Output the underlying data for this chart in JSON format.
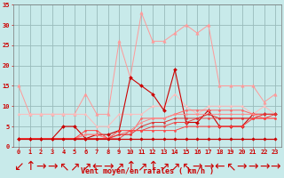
{
  "x": [
    0,
    1,
    2,
    3,
    4,
    5,
    6,
    7,
    8,
    9,
    10,
    11,
    12,
    13,
    14,
    15,
    16,
    17,
    18,
    19,
    20,
    21,
    22,
    23
  ],
  "series": [
    {
      "name": "rafales_top",
      "color": "#ff9999",
      "lw": 0.7,
      "marker": "^",
      "ms": 2.5,
      "y": [
        15,
        8,
        8,
        8,
        8,
        8,
        13,
        8,
        8,
        26,
        17,
        33,
        26,
        26,
        28,
        30,
        28,
        30,
        15,
        15,
        15,
        15,
        11,
        13
      ]
    },
    {
      "name": "rafales_mid",
      "color": "#ffbbbb",
      "lw": 0.7,
      "marker": "^",
      "ms": 2.0,
      "y": [
        8,
        8,
        8,
        8,
        8,
        8,
        8,
        5,
        5,
        8,
        8,
        8,
        10,
        10,
        13,
        10,
        8,
        10,
        10,
        10,
        10,
        8,
        10,
        8
      ]
    },
    {
      "name": "moy_dark",
      "color": "#cc0000",
      "lw": 0.8,
      "marker": "D",
      "ms": 2.0,
      "y": [
        2,
        2,
        2,
        2,
        5,
        5,
        2,
        3,
        3,
        4,
        17,
        15,
        13,
        9,
        19,
        6,
        6,
        9,
        5,
        5,
        5,
        8,
        8,
        8
      ]
    },
    {
      "name": "moy_a",
      "color": "#ff6666",
      "lw": 0.7,
      "marker": "o",
      "ms": 1.5,
      "y": [
        2,
        2,
        2,
        2,
        2,
        2,
        3,
        3,
        2,
        3,
        3,
        7,
        7,
        7,
        8,
        9,
        9,
        9,
        9,
        9,
        9,
        8,
        8,
        8
      ]
    },
    {
      "name": "moy_b",
      "color": "#ff8888",
      "lw": 0.7,
      "marker": "o",
      "ms": 1.5,
      "y": [
        2,
        2,
        2,
        2,
        2,
        2,
        3,
        3,
        2,
        3,
        4,
        6,
        7,
        7,
        8,
        8,
        8,
        8,
        8,
        8,
        8,
        8,
        7,
        7
      ]
    },
    {
      "name": "moy_c",
      "color": "#ee4444",
      "lw": 0.7,
      "marker": "o",
      "ms": 1.5,
      "y": [
        2,
        2,
        2,
        2,
        2,
        2,
        2,
        2,
        2,
        2,
        4,
        4,
        5,
        5,
        6,
        6,
        7,
        7,
        7,
        7,
        7,
        7,
        7,
        8
      ]
    },
    {
      "name": "moy_d",
      "color": "#dd3333",
      "lw": 0.7,
      "marker": "o",
      "ms": 1.5,
      "y": [
        2,
        2,
        2,
        2,
        2,
        2,
        2,
        2,
        2,
        3,
        3,
        5,
        6,
        6,
        7,
        7,
        7,
        8,
        7,
        7,
        7,
        7,
        8,
        8
      ]
    },
    {
      "name": "moy_e",
      "color": "#ff4444",
      "lw": 0.7,
      "marker": "o",
      "ms": 1.5,
      "y": [
        2,
        2,
        2,
        2,
        2,
        2,
        4,
        4,
        2,
        4,
        4,
        4,
        4,
        4,
        4,
        5,
        5,
        5,
        5,
        5,
        5,
        7,
        7,
        7
      ]
    },
    {
      "name": "flat_bottom",
      "color": "#cc0000",
      "lw": 0.9,
      "marker": "D",
      "ms": 1.8,
      "y": [
        2,
        2,
        2,
        2,
        2,
        2,
        2,
        2,
        2,
        2,
        2,
        2,
        2,
        2,
        2,
        2,
        2,
        2,
        2,
        2,
        2,
        2,
        2,
        2
      ]
    }
  ],
  "arrows": [
    "↙",
    "↑",
    "→",
    "→",
    "↖",
    "↗",
    "↗",
    "←",
    "→",
    "↗",
    "↑",
    "↗",
    "↑",
    "↗",
    "↗",
    "↖",
    "→",
    "→",
    "←",
    "↖",
    "→",
    "→",
    "→",
    "→"
  ],
  "xlabel": "Vent moyen/en rafales ( km/h )",
  "bg_color": "#c8eaea",
  "grid_color": "#99bbbb",
  "xlim": [
    -0.5,
    23.5
  ],
  "ylim": [
    0,
    35
  ],
  "yticks": [
    0,
    5,
    10,
    15,
    20,
    25,
    30,
    35
  ],
  "xticks": [
    0,
    1,
    2,
    3,
    4,
    5,
    6,
    7,
    8,
    9,
    10,
    11,
    12,
    13,
    14,
    15,
    16,
    17,
    18,
    19,
    20,
    21,
    22,
    23
  ],
  "tick_fontsize": 5.0,
  "xlabel_fontsize": 6.0,
  "arrow_fontsize": 4.5
}
